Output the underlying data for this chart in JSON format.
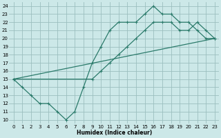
{
  "xlabel": "Humidex (Indice chaleur)",
  "bg_color": "#cce8e8",
  "grid_color": "#9bbfbf",
  "line_color": "#2a7a6a",
  "xlim": [
    -0.5,
    23.5
  ],
  "ylim": [
    9.5,
    24.5
  ],
  "xticks": [
    0,
    1,
    2,
    3,
    4,
    5,
    6,
    7,
    8,
    9,
    10,
    11,
    12,
    13,
    14,
    15,
    16,
    17,
    18,
    19,
    20,
    21,
    22,
    23
  ],
  "yticks": [
    10,
    11,
    12,
    13,
    14,
    15,
    16,
    17,
    18,
    19,
    20,
    21,
    22,
    23,
    24
  ],
  "line1_x": [
    0,
    1,
    2,
    3,
    4,
    5,
    6,
    7,
    8,
    9,
    10,
    11,
    12,
    13,
    14,
    15,
    16,
    17,
    18,
    19,
    20,
    21,
    22,
    23
  ],
  "line1_y": [
    15,
    14,
    13,
    12,
    12,
    11,
    10,
    11,
    14,
    17,
    19,
    21,
    22,
    22,
    22,
    23,
    24,
    23,
    23,
    22,
    22,
    21,
    20,
    20
  ],
  "line2_x": [
    0,
    23
  ],
  "line2_y": [
    15,
    20
  ],
  "line3_x": [
    0,
    9,
    10,
    11,
    12,
    13,
    14,
    15,
    16,
    17,
    18,
    19,
    20,
    21,
    22,
    23
  ],
  "line3_y": [
    15,
    15,
    16,
    17,
    18,
    19,
    20,
    21,
    22,
    22,
    22,
    21,
    21,
    22,
    21,
    20
  ]
}
